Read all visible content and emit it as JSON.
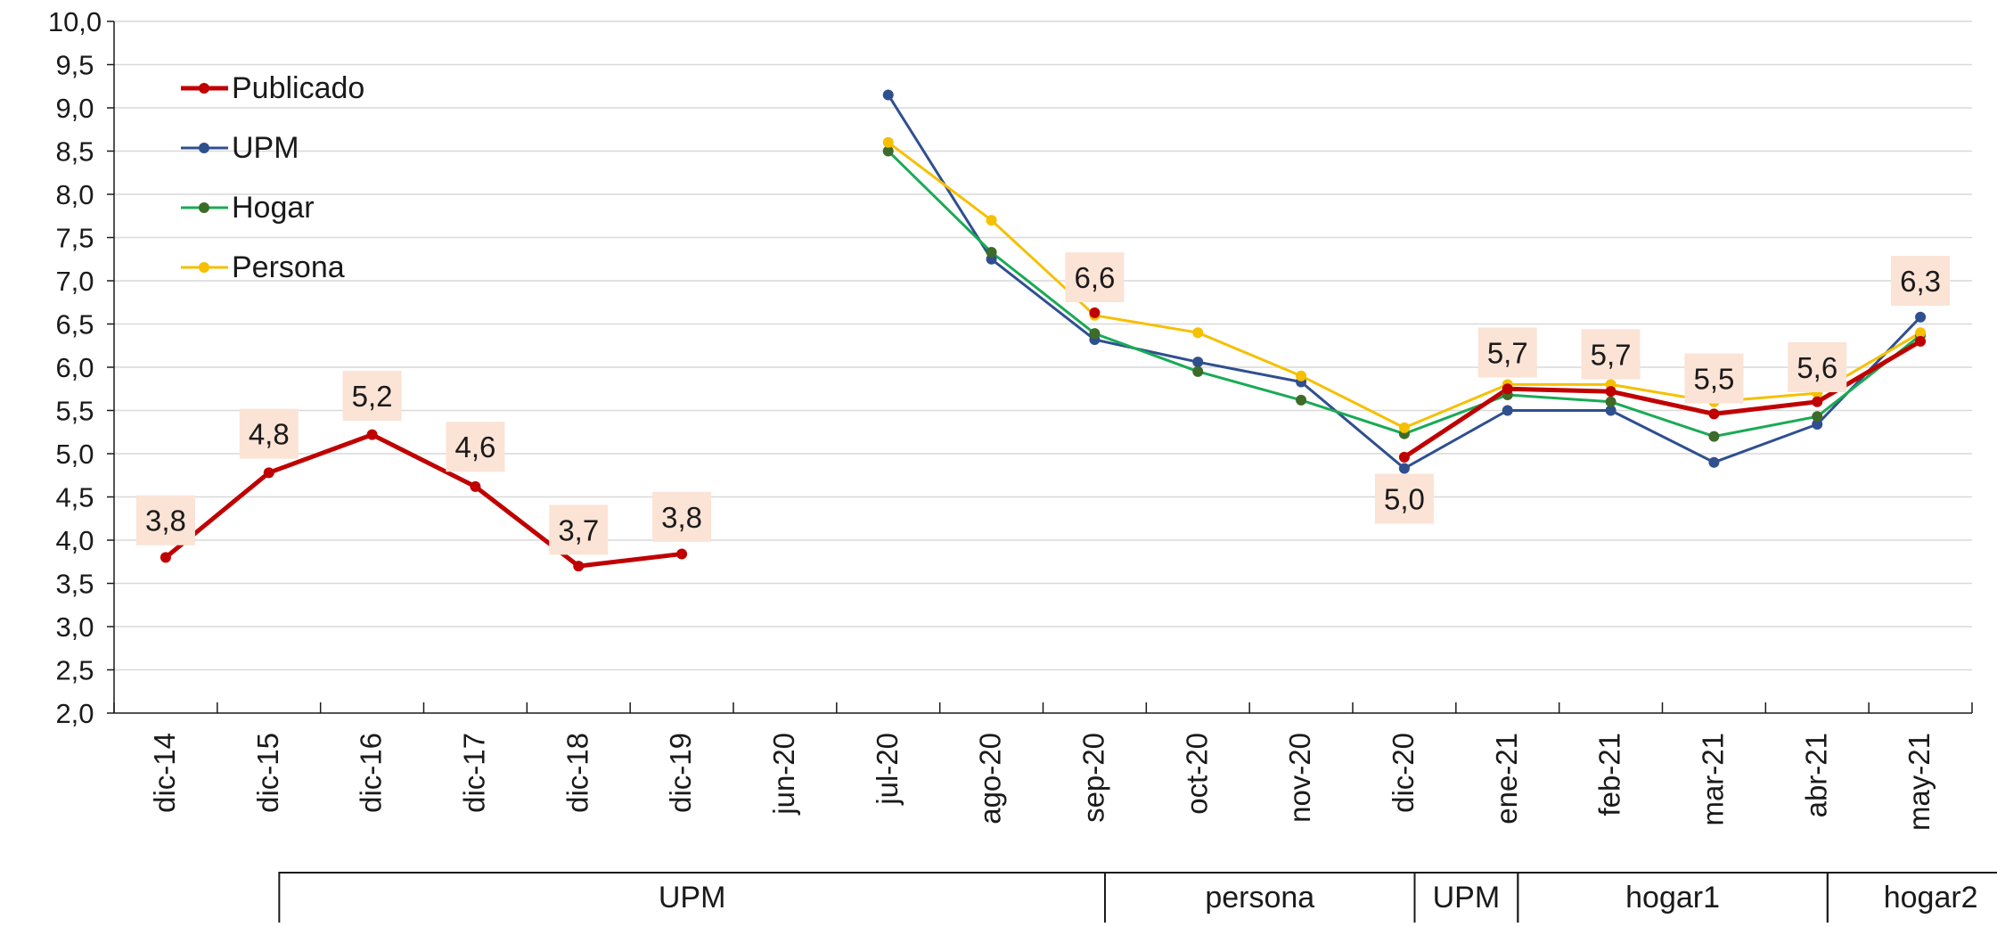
{
  "chart_data": {
    "type": "line",
    "categories": [
      "dic-14",
      "dic-15",
      "dic-16",
      "dic-17",
      "dic-18",
      "dic-19",
      "jun-20",
      "jul-20",
      "ago-20",
      "sep-20",
      "oct-20",
      "nov-20",
      "dic-20",
      "ene-21",
      "feb-21",
      "mar-21",
      "abr-21",
      "may-21"
    ],
    "ylim": [
      2.0,
      10.0
    ],
    "ystep": 0.5,
    "y_ticks": [
      "2,0",
      "2,5",
      "3,0",
      "3,5",
      "4,0",
      "4,5",
      "5,0",
      "5,5",
      "6,0",
      "6,5",
      "7,0",
      "7,5",
      "8,0",
      "8,5",
      "9,0",
      "9,5",
      "10,0"
    ],
    "grid": true,
    "legend_placement": "top-left",
    "series": [
      {
        "name": "Publicado",
        "color": "#C00000",
        "values": [
          3.8,
          4.78,
          5.22,
          4.62,
          3.7,
          3.84,
          null,
          null,
          null,
          6.63,
          null,
          null,
          4.96,
          5.75,
          5.72,
          5.46,
          5.6,
          6.3
        ]
      },
      {
        "name": "UPM",
        "color": "#2F4F8F",
        "values": [
          null,
          null,
          null,
          null,
          null,
          null,
          null,
          9.15,
          7.25,
          6.32,
          6.06,
          5.83,
          4.83,
          5.5,
          5.5,
          4.9,
          5.34,
          6.58
        ]
      },
      {
        "name": "Hogar",
        "color": "#1AAA55",
        "values": [
          null,
          null,
          null,
          null,
          null,
          null,
          null,
          8.5,
          7.33,
          6.39,
          5.95,
          5.62,
          5.23,
          5.68,
          5.6,
          5.2,
          5.43,
          6.37
        ]
      },
      {
        "name": "Persona",
        "color": "#F5C000",
        "values": [
          null,
          null,
          null,
          null,
          null,
          null,
          null,
          8.6,
          7.7,
          6.6,
          6.4,
          5.9,
          5.3,
          5.8,
          5.8,
          5.6,
          5.7,
          6.4
        ]
      }
    ],
    "data_labels": [
      {
        "category": "dic-14",
        "text": "3,8",
        "y": 4.23
      },
      {
        "category": "dic-15",
        "text": "4,8",
        "y": 5.23
      },
      {
        "category": "dic-16",
        "text": "5,2",
        "y": 5.67
      },
      {
        "category": "dic-17",
        "text": "4,6",
        "y": 5.08
      },
      {
        "category": "dic-18",
        "text": "3,7",
        "y": 4.12
      },
      {
        "category": "dic-19",
        "text": "3,8",
        "y": 4.27
      },
      {
        "category": "sep-20",
        "text": "6,6",
        "y": 7.04
      },
      {
        "category": "dic-20",
        "text": "5,0",
        "y": 4.48
      },
      {
        "category": "ene-21",
        "text": "5,7",
        "y": 6.17
      },
      {
        "category": "feb-21",
        "text": "5,7",
        "y": 6.15
      },
      {
        "category": "mar-21",
        "text": "5,5",
        "y": 5.87
      },
      {
        "category": "abr-21",
        "text": "5,6",
        "y": 6.0
      },
      {
        "category": "may-21",
        "text": "6,3",
        "y": 7.0
      }
    ],
    "groups": [
      {
        "label": "UPM",
        "from": 1,
        "to": 8
      },
      {
        "label": "persona",
        "from": 9,
        "to": 11
      },
      {
        "label": "UPM",
        "from": 12,
        "to": 12
      },
      {
        "label": "hogar1",
        "from": 13,
        "to": 15
      },
      {
        "label": "hogar2",
        "from": 16,
        "to": 17
      }
    ],
    "label_box_color": "#FBE3D6"
  }
}
